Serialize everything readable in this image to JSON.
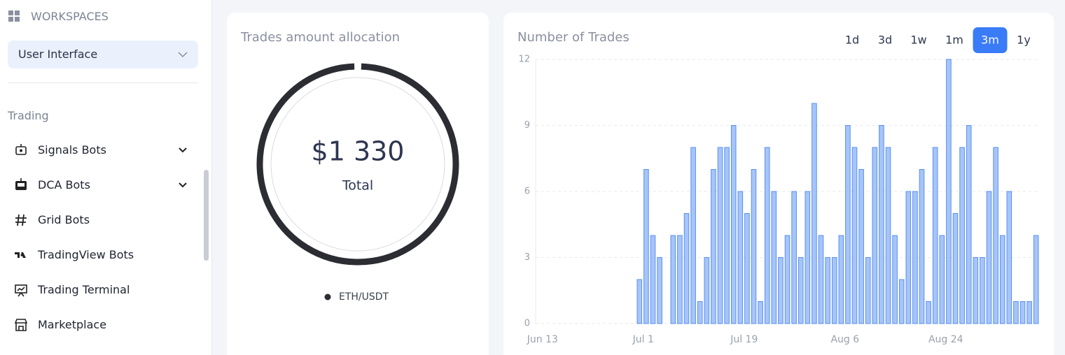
{
  "sidebar": {
    "workspaces_label": "WORKSPACES",
    "workspace_select": "User Interface",
    "section": "Trading",
    "items": [
      {
        "label": "Signals Bots",
        "expandable": true
      },
      {
        "label": "DCA Bots",
        "expandable": true
      },
      {
        "label": "Grid Bots",
        "expandable": false
      },
      {
        "label": "TradingView Bots",
        "expandable": false
      },
      {
        "label": "Trading Terminal",
        "expandable": false
      },
      {
        "label": "Marketplace",
        "expandable": false
      }
    ]
  },
  "chart_data": [
    {
      "type": "pie",
      "title": "Trades amount allocation",
      "categories": [
        "ETH/USDT"
      ],
      "values": [
        1330
      ],
      "value_labels": [
        "$1 330"
      ],
      "center_label": "Total",
      "colors": [
        "#2b2d33"
      ]
    },
    {
      "type": "bar",
      "title": "Number of Trades",
      "range_buttons": [
        "1d",
        "3d",
        "1w",
        "1m",
        "3m",
        "1y"
      ],
      "selected_range": "3m",
      "categories": [
        "Jun 13",
        null,
        null,
        null,
        null,
        null,
        null,
        null,
        null,
        null,
        null,
        null,
        null,
        null,
        null,
        "Jul 1",
        null,
        null,
        null,
        null,
        null,
        null,
        null,
        null,
        null,
        null,
        null,
        null,
        null,
        null,
        "Jul 19",
        null,
        null,
        null,
        null,
        null,
        null,
        null,
        null,
        null,
        null,
        null,
        null,
        null,
        null,
        "Aug 6",
        null,
        null,
        null,
        null,
        null,
        null,
        null,
        null,
        null,
        null,
        null,
        null,
        null,
        null,
        "Aug 24",
        null,
        null,
        null,
        null,
        null,
        null,
        null,
        null,
        null,
        null,
        null,
        null,
        null,
        null
      ],
      "values": [
        0,
        0,
        0,
        0,
        0,
        0,
        0,
        0,
        0,
        0,
        0,
        0,
        0,
        0,
        0,
        2,
        7,
        4,
        3,
        0,
        4,
        4,
        5,
        8,
        1,
        3,
        7,
        8,
        8,
        9,
        6,
        5,
        7,
        1,
        8,
        6,
        3,
        4,
        6,
        3,
        6,
        10,
        4,
        3,
        3,
        4,
        9,
        8,
        7,
        3,
        8,
        9,
        8,
        4,
        2,
        6,
        6,
        7,
        1,
        8,
        4,
        12,
        5,
        8,
        9,
        3,
        3,
        6,
        8,
        4,
        6,
        1,
        1,
        1,
        4
      ],
      "color": "#a6c5f8",
      "edge_color": "#5a8ff0",
      "ylim": [
        0,
        12
      ],
      "yticks": [
        0,
        3,
        6,
        9,
        12
      ],
      "grid": true
    }
  ]
}
